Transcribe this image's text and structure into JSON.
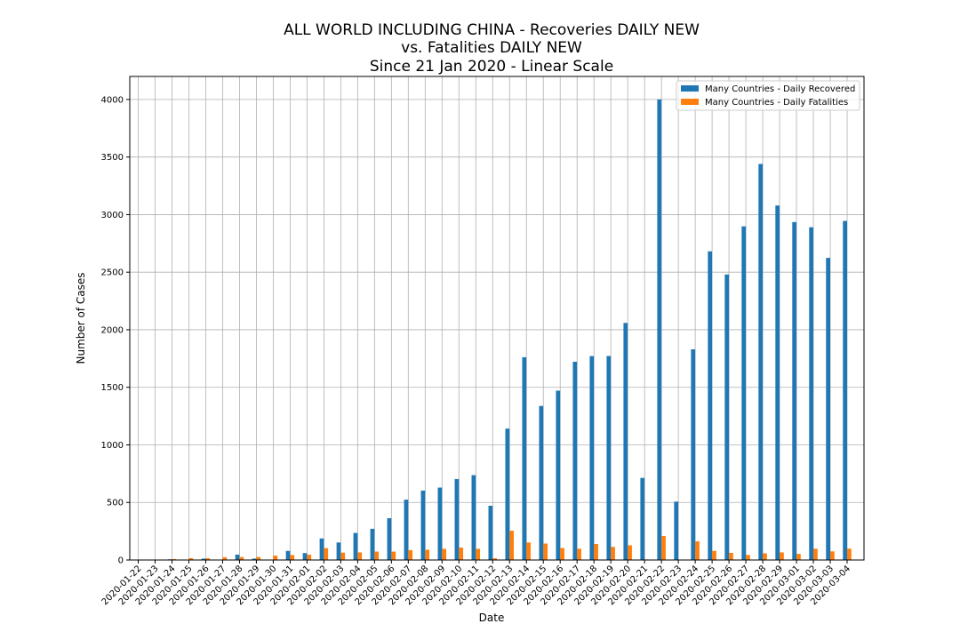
{
  "chart_data": {
    "type": "bar",
    "title_lines": [
      "ALL WORLD INCLUDING CHINA - Recoveries DAILY NEW",
      "vs. Fatalities DAILY NEW",
      "Since 21 Jan 2020 - Linear Scale"
    ],
    "xlabel": "Date",
    "ylabel": "Number of Cases",
    "ylim": [
      0,
      4200
    ],
    "yticks": [
      0,
      500,
      1000,
      1500,
      2000,
      2500,
      3000,
      3500,
      4000
    ],
    "grid": true,
    "legend_position": "top-right",
    "categories": [
      "2020-01-22",
      "2020-01-23",
      "2020-01-24",
      "2020-01-25",
      "2020-01-26",
      "2020-01-27",
      "2020-01-28",
      "2020-01-29",
      "2020-01-30",
      "2020-01-31",
      "2020-02-01",
      "2020-02-02",
      "2020-02-03",
      "2020-02-04",
      "2020-02-05",
      "2020-02-06",
      "2020-02-07",
      "2020-02-08",
      "2020-02-09",
      "2020-02-10",
      "2020-02-11",
      "2020-02-12",
      "2020-02-13",
      "2020-02-14",
      "2020-02-15",
      "2020-02-16",
      "2020-02-17",
      "2020-02-18",
      "2020-02-19",
      "2020-02-20",
      "2020-02-21",
      "2020-02-22",
      "2020-02-23",
      "2020-02-24",
      "2020-02-25",
      "2020-02-26",
      "2020-02-27",
      "2020-02-28",
      "2020-02-29",
      "2020-03-01",
      "2020-03-02",
      "2020-03-03",
      "2020-03-04"
    ],
    "series": [
      {
        "name": "Many Countries - Daily Recovered",
        "color": "#1f77b4",
        "values": [
          0,
          2,
          6,
          3,
          12,
          3,
          47,
          12,
          3,
          79,
          60,
          187,
          152,
          235,
          271,
          363,
          524,
          603,
          629,
          703,
          737,
          471,
          1141,
          1761,
          1338,
          1471,
          1722,
          1771,
          1772,
          2059,
          713,
          4000,
          507,
          1830,
          2681,
          2480,
          2898,
          3440,
          3079,
          2935,
          2890,
          2624,
          2945
        ]
      },
      {
        "name": "Many Countries - Daily Fatalities",
        "color": "#ff7f0e",
        "values": [
          0,
          1,
          8,
          16,
          15,
          24,
          26,
          26,
          38,
          43,
          46,
          103,
          64,
          66,
          73,
          73,
          86,
          89,
          97,
          108,
          97,
          15,
          254,
          152,
          143,
          104,
          98,
          139,
          114,
          128,
          5,
          208,
          3,
          162,
          79,
          62,
          44,
          58,
          66,
          53,
          98,
          75,
          99
        ]
      }
    ]
  }
}
